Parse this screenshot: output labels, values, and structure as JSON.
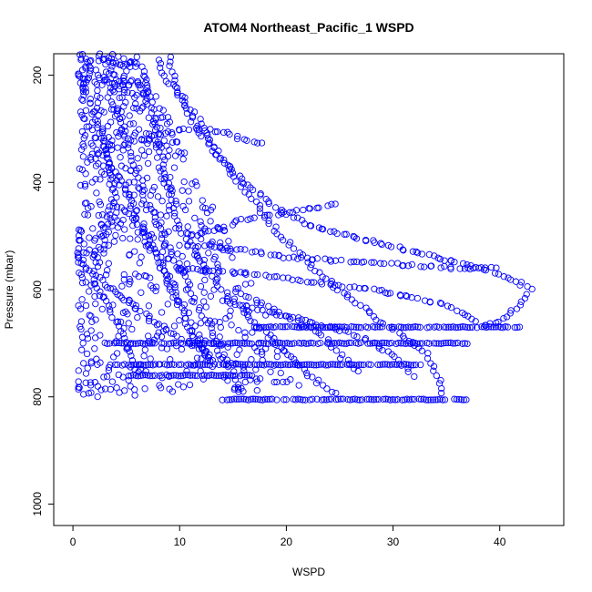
{
  "chart_data": {
    "type": "scatter",
    "title": "ATOM4 Northeast_Pacific_1 WSPD",
    "xlabel": "WSPD",
    "ylabel": "Pressure (mbar)",
    "xlim": [
      -1.8,
      46
    ],
    "ylim": [
      1040,
      160
    ],
    "y_reversed": true,
    "x_ticks": [
      0,
      10,
      20,
      30,
      40
    ],
    "y_ticks": [
      200,
      400,
      600,
      800,
      1000
    ],
    "grid": false,
    "legend": "none",
    "marker": "open-circle",
    "color": "#0000ff",
    "profiles": [
      [
        [
          1.0,
          160
        ],
        [
          1.5,
          190
        ],
        [
          1.0,
          230
        ],
        [
          2.0,
          260
        ],
        [
          2.5,
          300
        ],
        [
          3.0,
          340
        ],
        [
          3.5,
          380
        ],
        [
          4.0,
          420
        ],
        [
          3.5,
          460
        ],
        [
          3.0,
          500
        ],
        [
          2.5,
          540
        ],
        [
          2.0,
          580
        ],
        [
          3.0,
          620
        ],
        [
          4.0,
          660
        ],
        [
          5.0,
          700
        ],
        [
          6.0,
          740
        ],
        [
          7.0,
          760
        ]
      ],
      [
        [
          3.0,
          160
        ],
        [
          4.0,
          200
        ],
        [
          3.5,
          240
        ],
        [
          4.5,
          280
        ],
        [
          5.0,
          320
        ],
        [
          5.5,
          360
        ],
        [
          6.0,
          400
        ],
        [
          7.0,
          440
        ],
        [
          8.0,
          480
        ],
        [
          9.0,
          520
        ],
        [
          10.0,
          560
        ],
        [
          11.0,
          600
        ],
        [
          12.0,
          640
        ],
        [
          13.0,
          680
        ],
        [
          14.0,
          720
        ],
        [
          15.0,
          760
        ],
        [
          16.0,
          800
        ]
      ],
      [
        [
          6.0,
          160
        ],
        [
          6.5,
          200
        ],
        [
          7.0,
          240
        ],
        [
          7.5,
          280
        ],
        [
          8.0,
          320
        ],
        [
          8.5,
          360
        ],
        [
          9.0,
          400
        ],
        [
          9.5,
          440
        ],
        [
          10.0,
          480
        ],
        [
          11.0,
          520
        ],
        [
          12.5,
          560
        ],
        [
          14.0,
          600
        ],
        [
          16.0,
          640
        ],
        [
          18.0,
          680
        ],
        [
          20.0,
          720
        ],
        [
          22.0,
          760
        ],
        [
          25.0,
          800
        ]
      ],
      [
        [
          9.0,
          160
        ],
        [
          9.5,
          200
        ],
        [
          10.0,
          240
        ],
        [
          11.0,
          280
        ],
        [
          12.5,
          320
        ],
        [
          14.0,
          360
        ],
        [
          16.0,
          400
        ],
        [
          18.0,
          430
        ],
        [
          20.0,
          460
        ],
        [
          22.0,
          480
        ],
        [
          26.0,
          500
        ],
        [
          30.0,
          520
        ],
        [
          34.0,
          540
        ],
        [
          38.0,
          560
        ],
        [
          41.0,
          580
        ],
        [
          43.0,
          600
        ],
        [
          42.0,
          630
        ],
        [
          40.0,
          660
        ],
        [
          38.0,
          670
        ]
      ],
      [
        [
          8.0,
          170
        ],
        [
          9.0,
          210
        ],
        [
          10.5,
          250
        ],
        [
          12.0,
          290
        ],
        [
          13.0,
          330
        ],
        [
          14.5,
          370
        ],
        [
          16.0,
          410
        ],
        [
          17.5,
          450
        ],
        [
          19.0,
          490
        ],
        [
          21.0,
          530
        ],
        [
          23.0,
          570
        ],
        [
          25.0,
          600
        ],
        [
          27.0,
          630
        ],
        [
          29.0,
          660
        ],
        [
          31.0,
          690
        ],
        [
          33.0,
          720
        ],
        [
          34.0,
          760
        ],
        [
          35.0,
          800
        ]
      ],
      [
        [
          2.0,
          300
        ],
        [
          3.0,
          340
        ],
        [
          4.0,
          380
        ],
        [
          5.0,
          420
        ],
        [
          6.0,
          460
        ],
        [
          7.0,
          500
        ],
        [
          8.0,
          540
        ],
        [
          9.0,
          580
        ],
        [
          10.0,
          620
        ],
        [
          11.0,
          660
        ],
        [
          12.0,
          700
        ],
        [
          13.0,
          740
        ]
      ],
      [
        [
          0.5,
          530
        ],
        [
          1.5,
          560
        ],
        [
          3.0,
          590
        ],
        [
          5.0,
          620
        ],
        [
          7.0,
          650
        ],
        [
          9.0,
          680
        ],
        [
          11.0,
          700
        ],
        [
          13.0,
          720
        ],
        [
          15.0,
          740
        ]
      ],
      [
        [
          11.0,
          500
        ],
        [
          13.0,
          490
        ],
        [
          16.0,
          470
        ],
        [
          19.0,
          460
        ],
        [
          22.0,
          450
        ],
        [
          25.0,
          440
        ]
      ],
      [
        [
          11.0,
          520
        ],
        [
          14.0,
          520
        ],
        [
          17.0,
          530
        ],
        [
          20.0,
          540
        ],
        [
          24.0,
          545
        ],
        [
          28.0,
          550
        ],
        [
          32.0,
          555
        ],
        [
          36.0,
          560
        ],
        [
          40.0,
          560
        ]
      ],
      [
        [
          10.0,
          560
        ],
        [
          13.0,
          565
        ],
        [
          16.0,
          570
        ],
        [
          20.0,
          580
        ],
        [
          24.0,
          590
        ],
        [
          28.0,
          600
        ],
        [
          32.0,
          615
        ],
        [
          35.0,
          630
        ],
        [
          37.0,
          650
        ],
        [
          38.0,
          665
        ]
      ],
      [
        [
          14.0,
          620
        ],
        [
          17.0,
          635
        ],
        [
          20.0,
          650
        ],
        [
          23.0,
          665
        ],
        [
          26.0,
          680
        ],
        [
          28.0,
          700
        ],
        [
          30.0,
          720
        ],
        [
          31.0,
          740
        ],
        [
          32.0,
          770
        ]
      ],
      [
        [
          5.0,
          330
        ],
        [
          8.0,
          310
        ],
        [
          11.0,
          300
        ],
        [
          14.0,
          305
        ],
        [
          16.0,
          320
        ],
        [
          18.0,
          330
        ]
      ],
      [
        [
          4.0,
          440
        ],
        [
          6.0,
          470
        ],
        [
          7.0,
          510
        ],
        [
          8.0,
          550
        ],
        [
          9.0,
          590
        ],
        [
          10.0,
          630
        ],
        [
          11.0,
          670
        ],
        [
          12.0,
          710
        ],
        [
          13.0,
          750
        ]
      ],
      [
        [
          15.0,
          600
        ],
        [
          17.0,
          620
        ],
        [
          19.0,
          640
        ],
        [
          21.0,
          660
        ],
        [
          23.0,
          680
        ],
        [
          24.0,
          700
        ],
        [
          25.0,
          720
        ],
        [
          26.0,
          740
        ],
        [
          27.0,
          760
        ]
      ]
    ],
    "levels": [
      {
        "pressure": 670,
        "x_start": 17.0,
        "x_end": 42.0
      },
      {
        "pressure": 700,
        "x_start": 3.0,
        "x_end": 37.0
      },
      {
        "pressure": 740,
        "x_start": 3.5,
        "x_end": 33.0
      },
      {
        "pressure": 760,
        "x_start": 5.0,
        "x_end": 17.0
      },
      {
        "pressure": 805,
        "x_start": 14.0,
        "x_end": 37.0
      }
    ],
    "cloud": {
      "count": 700,
      "x_min": 0.5,
      "x_max": 22.0,
      "p_min": 160,
      "p_max": 800
    }
  }
}
